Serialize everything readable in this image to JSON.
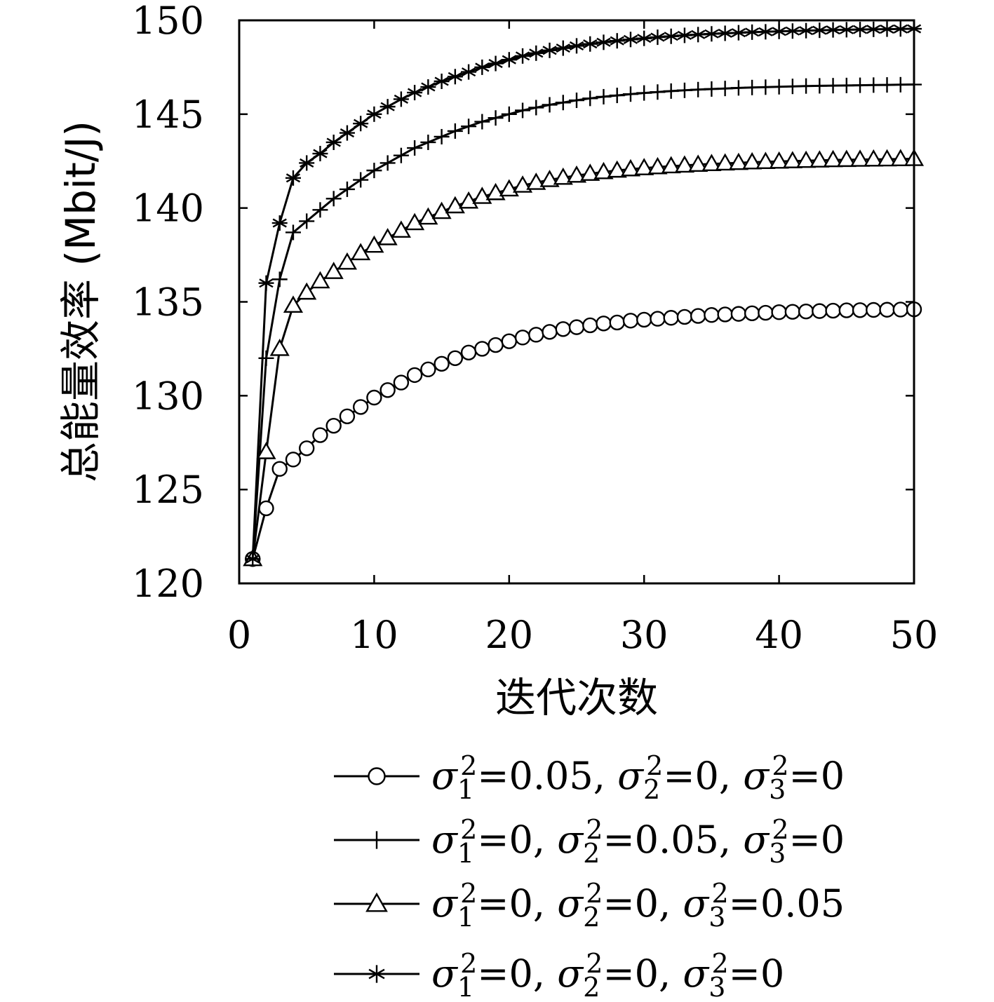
{
  "chart_data": {
    "type": "line",
    "title": "",
    "xlabel": "迭代次数",
    "ylabel": "总能量效率 (Mbit/J)",
    "xlim": [
      0,
      50
    ],
    "ylim": [
      120,
      150
    ],
    "xticks": [
      "0",
      "10",
      "20",
      "30",
      "40",
      "50"
    ],
    "yticks": [
      "120",
      "125",
      "130",
      "135",
      "140",
      "145",
      "150"
    ],
    "grid": false,
    "legend_position": "below",
    "series": [
      {
        "name": "σ1²=0.05, σ2²=0, σ3²=0",
        "legend": {
          "s1": "0.05",
          "s2": "0",
          "s3": "0"
        },
        "marker": "circle",
        "x": [
          1,
          2,
          3,
          4,
          5,
          6,
          7,
          8,
          9,
          10,
          11,
          12,
          13,
          14,
          15,
          16,
          17,
          18,
          19,
          20,
          21,
          22,
          23,
          24,
          25,
          26,
          27,
          28,
          29,
          30,
          31,
          32,
          33,
          34,
          35,
          36,
          37,
          38,
          39,
          40,
          41,
          42,
          43,
          44,
          45,
          46,
          47,
          48,
          49,
          50
        ],
        "values": [
          121.3,
          124.0,
          126.1,
          126.6,
          127.2,
          127.9,
          128.4,
          128.9,
          129.4,
          129.9,
          130.3,
          130.7,
          131.1,
          131.4,
          131.7,
          132.0,
          132.3,
          132.5,
          132.7,
          132.9,
          133.1,
          133.25,
          133.4,
          133.55,
          133.65,
          133.75,
          133.85,
          133.9,
          134.0,
          134.05,
          134.1,
          134.15,
          134.2,
          134.25,
          134.3,
          134.33,
          134.36,
          134.39,
          134.42,
          134.45,
          134.47,
          134.49,
          134.51,
          134.53,
          134.55,
          134.56,
          134.57,
          134.58,
          134.59,
          134.6
        ]
      },
      {
        "name": "σ1²=0, σ2²=0.05, σ3²=0",
        "legend": {
          "s1": "0",
          "s2": "0.05",
          "s3": "0"
        },
        "marker": "plus",
        "x": [
          1,
          2,
          3,
          4,
          5,
          6,
          7,
          8,
          9,
          10,
          11,
          12,
          13,
          14,
          15,
          16,
          17,
          18,
          19,
          20,
          21,
          22,
          23,
          24,
          25,
          26,
          27,
          28,
          29,
          30,
          31,
          32,
          33,
          34,
          35,
          36,
          37,
          38,
          39,
          40,
          41,
          42,
          43,
          44,
          45,
          46,
          47,
          48,
          49,
          50
        ],
        "values": [
          121.3,
          132.0,
          136.2,
          138.7,
          139.3,
          139.9,
          140.5,
          141.0,
          141.5,
          142.0,
          142.4,
          142.8,
          143.2,
          143.5,
          143.8,
          144.1,
          144.35,
          144.6,
          144.8,
          145.0,
          145.2,
          145.35,
          145.5,
          145.62,
          145.74,
          145.84,
          145.93,
          146.0,
          146.07,
          146.13,
          146.18,
          146.23,
          146.27,
          146.31,
          146.34,
          146.37,
          146.4,
          146.42,
          146.44,
          146.46,
          146.48,
          146.5,
          146.51,
          146.52,
          146.53,
          146.54,
          146.55,
          146.56,
          146.57,
          146.58
        ]
      },
      {
        "name": "σ1²=0, σ2²=0, σ3²=0.05",
        "legend": {
          "s1": "0",
          "s2": "0",
          "s3": "0.05"
        },
        "marker": "triangle",
        "x": [
          1,
          2,
          3,
          4,
          5,
          6,
          7,
          8,
          9,
          10,
          11,
          12,
          13,
          14,
          15,
          16,
          17,
          18,
          19,
          20,
          21,
          22,
          23,
          24,
          25,
          26,
          27,
          28,
          29,
          30,
          31,
          32,
          33,
          34,
          35,
          36,
          37,
          38,
          39,
          40,
          41,
          42,
          43,
          44,
          45,
          46,
          47,
          48,
          49,
          50
        ],
        "values": [
          121.3,
          127.0,
          132.5,
          134.8,
          135.5,
          136.1,
          136.6,
          137.1,
          137.6,
          138.0,
          138.4,
          138.8,
          139.2,
          139.5,
          139.8,
          140.1,
          140.35,
          140.6,
          140.8,
          141.0,
          141.2,
          141.35,
          141.5,
          141.62,
          141.73,
          141.83,
          141.92,
          142.0,
          142.07,
          142.13,
          142.18,
          142.23,
          142.27,
          142.31,
          142.35,
          142.38,
          142.41,
          142.44,
          142.46,
          142.48,
          142.5,
          142.52,
          142.54,
          142.56,
          142.57,
          142.58,
          142.59,
          142.6,
          142.61,
          142.62
        ]
      },
      {
        "name": "σ1²=0, σ2²=0, σ3²=0",
        "legend": {
          "s1": "0",
          "s2": "0",
          "s3": "0"
        },
        "marker": "asterisk",
        "x": [
          1,
          2,
          3,
          4,
          5,
          6,
          7,
          8,
          9,
          10,
          11,
          12,
          13,
          14,
          15,
          16,
          17,
          18,
          19,
          20,
          21,
          22,
          23,
          24,
          25,
          26,
          27,
          28,
          29,
          30,
          31,
          32,
          33,
          34,
          35,
          36,
          37,
          38,
          39,
          40,
          41,
          42,
          43,
          44,
          45,
          46,
          47,
          48,
          49,
          50
        ],
        "values": [
          121.3,
          136.0,
          139.2,
          141.6,
          142.4,
          142.9,
          143.5,
          144.0,
          144.5,
          145.0,
          145.4,
          145.8,
          146.15,
          146.45,
          146.75,
          147.0,
          147.25,
          147.5,
          147.7,
          147.9,
          148.1,
          148.25,
          148.4,
          148.52,
          148.64,
          148.74,
          148.83,
          148.91,
          148.98,
          149.04,
          149.1,
          149.15,
          149.2,
          149.24,
          149.28,
          149.31,
          149.34,
          149.37,
          149.39,
          149.41,
          149.43,
          149.45,
          149.47,
          149.49,
          149.5,
          149.51,
          149.52,
          149.53,
          149.54,
          149.55
        ]
      }
    ]
  }
}
